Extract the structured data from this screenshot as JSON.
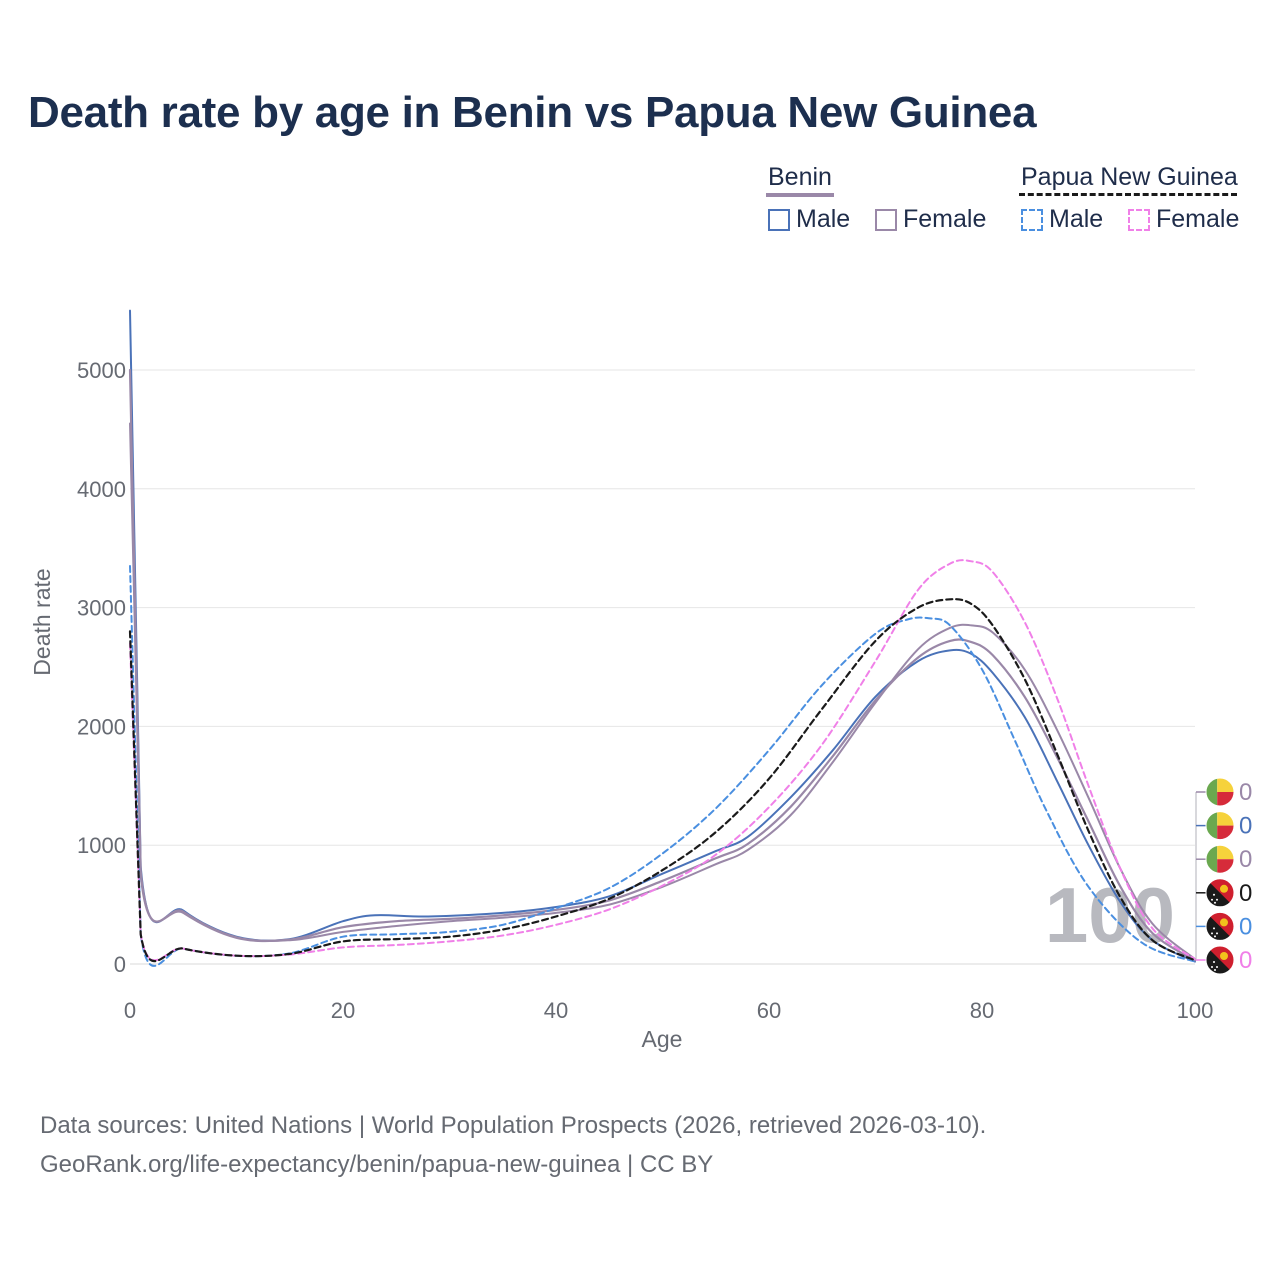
{
  "chart_data": {
    "type": "line",
    "title": "Death rate by age in Benin vs Papua New Guinea",
    "xlabel": "Age",
    "ylabel": "Death rate",
    "xlim": [
      0,
      100
    ],
    "ylim": [
      0,
      5500
    ],
    "xticks": [
      0,
      20,
      40,
      60,
      80,
      100
    ],
    "yticks": [
      0,
      1000,
      2000,
      3000,
      4000,
      5000
    ],
    "watermark": "100",
    "legend": {
      "groups": [
        {
          "name": "Benin",
          "items": [
            "Male",
            "Female"
          ]
        },
        {
          "name": "Papua New Guinea",
          "items": [
            "Male",
            "Female"
          ]
        }
      ]
    },
    "series": [
      {
        "name": "Benin Male",
        "country": "Benin",
        "sex": "Male",
        "color": "#4a72b8",
        "dash": false,
        "x": [
          0,
          1,
          5,
          10,
          15,
          20,
          23,
          28,
          35,
          40,
          45,
          50,
          55,
          58,
          62,
          66,
          70,
          74,
          77,
          79,
          81,
          84,
          87,
          90,
          93,
          96,
          100
        ],
        "y": [
          5500,
          820,
          450,
          230,
          210,
          360,
          410,
          400,
          430,
          480,
          570,
          760,
          950,
          1070,
          1400,
          1800,
          2250,
          2550,
          2640,
          2610,
          2450,
          2080,
          1550,
          1000,
          520,
          200,
          20
        ]
      },
      {
        "name": "Benin Female",
        "country": "Benin",
        "sex": "Female",
        "color": "#9a88a8",
        "dash": false,
        "x": [
          0,
          1,
          5,
          10,
          15,
          20,
          25,
          30,
          35,
          40,
          45,
          50,
          55,
          58,
          62,
          66,
          70,
          74,
          77,
          79,
          81,
          84,
          87,
          90,
          93,
          96,
          100
        ],
        "y": [
          4550,
          740,
          430,
          220,
          200,
          270,
          320,
          360,
          390,
          430,
          500,
          650,
          840,
          960,
          1250,
          1700,
          2200,
          2650,
          2830,
          2850,
          2790,
          2480,
          1980,
          1400,
          800,
          340,
          40
        ]
      },
      {
        "name": "Benin",
        "country": "Benin",
        "sex": "Both",
        "color": "#9a88a8",
        "dash": false,
        "x": [
          0,
          1,
          5,
          10,
          15,
          20,
          25,
          30,
          35,
          40,
          45,
          50,
          55,
          58,
          62,
          66,
          70,
          74,
          77,
          79,
          81,
          84,
          87,
          90,
          93,
          96,
          100
        ],
        "y": [
          5000,
          780,
          440,
          225,
          205,
          310,
          360,
          380,
          410,
          455,
          535,
          700,
          890,
          1010,
          1320,
          1750,
          2220,
          2580,
          2720,
          2710,
          2600,
          2250,
          1750,
          1200,
          650,
          260,
          30
        ]
      },
      {
        "name": "Papua New Guinea Male",
        "country": "Papua New Guinea",
        "sex": "Male",
        "color": "#4a8fe0",
        "dash": true,
        "x": [
          0,
          1,
          5,
          10,
          15,
          20,
          25,
          30,
          35,
          40,
          45,
          50,
          55,
          60,
          65,
          70,
          73,
          75,
          77,
          80,
          83,
          86,
          90,
          95,
          100
        ],
        "y": [
          3350,
          250,
          130,
          70,
          90,
          230,
          250,
          270,
          330,
          470,
          640,
          930,
          1310,
          1800,
          2350,
          2780,
          2900,
          2910,
          2850,
          2480,
          1900,
          1300,
          650,
          180,
          20
        ]
      },
      {
        "name": "Papua New Guinea Female",
        "country": "Papua New Guinea",
        "sex": "Female",
        "color": "#f080e8",
        "dash": true,
        "x": [
          0,
          1,
          5,
          10,
          15,
          20,
          25,
          30,
          35,
          40,
          45,
          50,
          55,
          60,
          65,
          70,
          74,
          77,
          79,
          81,
          84,
          87,
          90,
          93,
          96,
          100
        ],
        "y": [
          2700,
          250,
          130,
          70,
          80,
          140,
          160,
          190,
          240,
          330,
          460,
          660,
          920,
          1320,
          1850,
          2550,
          3150,
          3370,
          3390,
          3300,
          2880,
          2250,
          1500,
          800,
          300,
          40
        ]
      },
      {
        "name": "Papua New Guinea",
        "country": "Papua New Guinea",
        "sex": "Both",
        "color": "#1a1a1a",
        "dash": true,
        "x": [
          0,
          1,
          5,
          10,
          15,
          20,
          25,
          30,
          35,
          40,
          45,
          50,
          55,
          60,
          65,
          70,
          74,
          77,
          79,
          81,
          84,
          87,
          90,
          93,
          96,
          100
        ],
        "y": [
          2800,
          250,
          130,
          70,
          85,
          190,
          210,
          230,
          290,
          400,
          550,
          790,
          1110,
          1560,
          2150,
          2720,
          3000,
          3070,
          3030,
          2850,
          2400,
          1780,
          1120,
          560,
          200,
          30
        ]
      }
    ],
    "end_labels": [
      {
        "flag": "Benin",
        "value": "0",
        "color": "#9a88a8"
      },
      {
        "flag": "Benin",
        "value": "0",
        "color": "#4a72b8"
      },
      {
        "flag": "Benin",
        "value": "0",
        "color": "#9a88a8"
      },
      {
        "flag": "Papua New Guinea",
        "value": "0",
        "color": "#1a1a1a"
      },
      {
        "flag": "Papua New Guinea",
        "value": "0",
        "color": "#4a8fe0"
      },
      {
        "flag": "Papua New Guinea",
        "value": "0",
        "color": "#f080e8"
      }
    ]
  },
  "legend": {
    "benin": {
      "title": "Benin",
      "male": "Male",
      "female": "Female"
    },
    "png": {
      "title": "Papua New Guinea",
      "male": "Male",
      "female": "Female"
    }
  },
  "source": {
    "line1": "Data sources: United Nations | World Population Prospects (2026, retrieved 2026-03-10).",
    "line2": "GeoRank.org/life-expectancy/benin/papua-new-guinea | CC BY"
  },
  "colors": {
    "title": "#1c2f4f",
    "grid": "#e6e6e6",
    "benin_flag_green": "#6aa84f",
    "benin_flag_yellow": "#f6d23b",
    "benin_flag_red": "#d62b3a",
    "png_flag_red": "#cf1f2e",
    "png_flag_black": "#1a1a1a",
    "png_flag_gold": "#f2c21c"
  }
}
